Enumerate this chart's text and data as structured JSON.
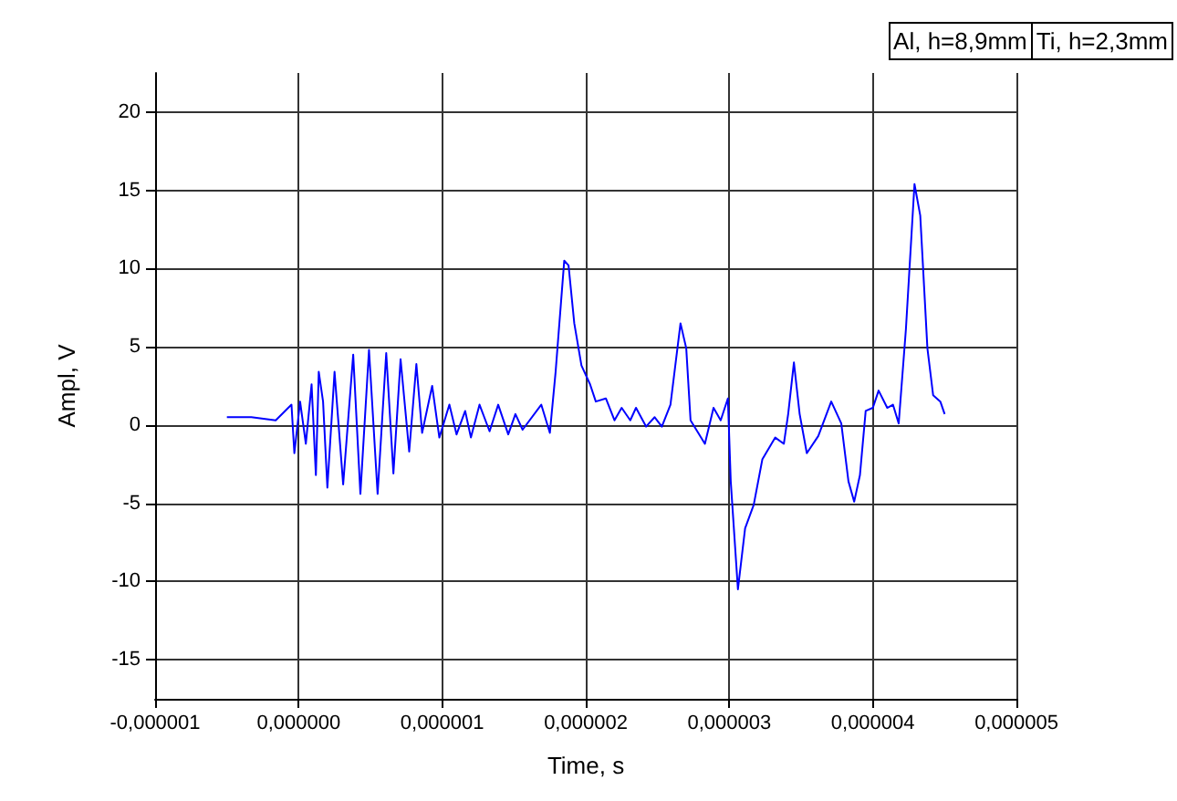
{
  "chart_data": {
    "type": "line",
    "xlabel": "Time, s",
    "ylabel": "Ampl, V",
    "annotations": [
      "Al, h=8,9mm",
      "Ti, h=2,3mm"
    ],
    "xlim": [
      -1e-06,
      5e-06
    ],
    "xticks": [
      {
        "value": -1e-06,
        "label": "-0,000001"
      },
      {
        "value": 0,
        "label": "0,000000"
      },
      {
        "value": 1e-06,
        "label": "0,000001"
      },
      {
        "value": 2e-06,
        "label": "0,000002"
      },
      {
        "value": 3e-06,
        "label": "0,000003"
      },
      {
        "value": 4e-06,
        "label": "0,000004"
      },
      {
        "value": 5e-06,
        "label": "0,000005"
      }
    ],
    "ylim": [
      -17.5,
      22.5
    ],
    "yticks": [
      -15,
      -10,
      -5,
      0,
      5,
      10,
      15,
      20
    ],
    "grid": true,
    "marker": "none",
    "line_style": "solid",
    "series": [
      {
        "color": "#0000ff",
        "x": [
          -5e-07,
          -3.3e-07,
          -1.6e-07,
          -5e-08,
          -3e-08,
          1e-08,
          5e-08,
          9e-08,
          1.2e-07,
          1.4e-07,
          1.7e-07,
          2e-07,
          2.5e-07,
          3.1e-07,
          3.8e-07,
          4.3e-07,
          4.9e-07,
          5.5e-07,
          6.1e-07,
          6.6e-07,
          7.1e-07,
          7.7e-07,
          8.2e-07,
          8.6e-07,
          9.3e-07,
          9.8e-07,
          1.05e-06,
          1.1e-06,
          1.16e-06,
          1.2e-06,
          1.26e-06,
          1.33e-06,
          1.39e-06,
          1.46e-06,
          1.51e-06,
          1.56e-06,
          1.69e-06,
          1.75e-06,
          1.79e-06,
          1.85e-06,
          1.88e-06,
          1.92e-06,
          1.97e-06,
          2.03e-06,
          2.07e-06,
          2.14e-06,
          2.2e-06,
          2.25e-06,
          2.31e-06,
          2.35e-06,
          2.42e-06,
          2.48e-06,
          2.53e-06,
          2.59e-06,
          2.66e-06,
          2.7e-06,
          2.73e-06,
          2.77e-06,
          2.83e-06,
          2.89e-06,
          2.94e-06,
          2.99e-06,
          3.01e-06,
          3.06e-06,
          3.11e-06,
          3.17e-06,
          3.23e-06,
          3.32e-06,
          3.38e-06,
          3.41e-06,
          3.45e-06,
          3.49e-06,
          3.54e-06,
          3.62e-06,
          3.71e-06,
          3.78e-06,
          3.83e-06,
          3.87e-06,
          3.91e-06,
          3.95e-06,
          4e-06,
          4.04e-06,
          4.1e-06,
          4.14e-06,
          4.18e-06,
          4.23e-06,
          4.29e-06,
          4.33e-06,
          4.38e-06,
          4.42e-06,
          4.47e-06,
          4.5e-06
        ],
        "values": [
          0.5,
          0.5,
          0.3,
          1.3,
          -1.8,
          1.5,
          -1.2,
          2.6,
          -3.2,
          3.4,
          1.5,
          -4.0,
          3.4,
          -3.8,
          4.5,
          -4.4,
          4.8,
          -4.4,
          4.6,
          -3.1,
          4.2,
          -1.7,
          3.9,
          -0.5,
          2.5,
          -0.8,
          1.3,
          -0.6,
          0.9,
          -0.8,
          1.3,
          -0.4,
          1.3,
          -0.6,
          0.7,
          -0.3,
          1.3,
          -0.5,
          3.4,
          10.5,
          10.2,
          6.5,
          3.8,
          2.6,
          1.5,
          1.7,
          0.3,
          1.1,
          0.3,
          1.1,
          -0.1,
          0.5,
          -0.1,
          1.3,
          6.5,
          4.9,
          0.3,
          -0.3,
          -1.2,
          1.1,
          0.3,
          1.7,
          -3.6,
          -10.5,
          -6.6,
          -5.1,
          -2.2,
          -0.8,
          -1.2,
          0.7,
          4.0,
          0.7,
          -1.8,
          -0.7,
          1.5,
          0.1,
          -3.6,
          -4.9,
          -3.2,
          0.9,
          1.1,
          2.2,
          1.1,
          1.3,
          0.1,
          6.1,
          15.4,
          13.4,
          4.9,
          1.9,
          1.5,
          0.7
        ]
      }
    ]
  }
}
